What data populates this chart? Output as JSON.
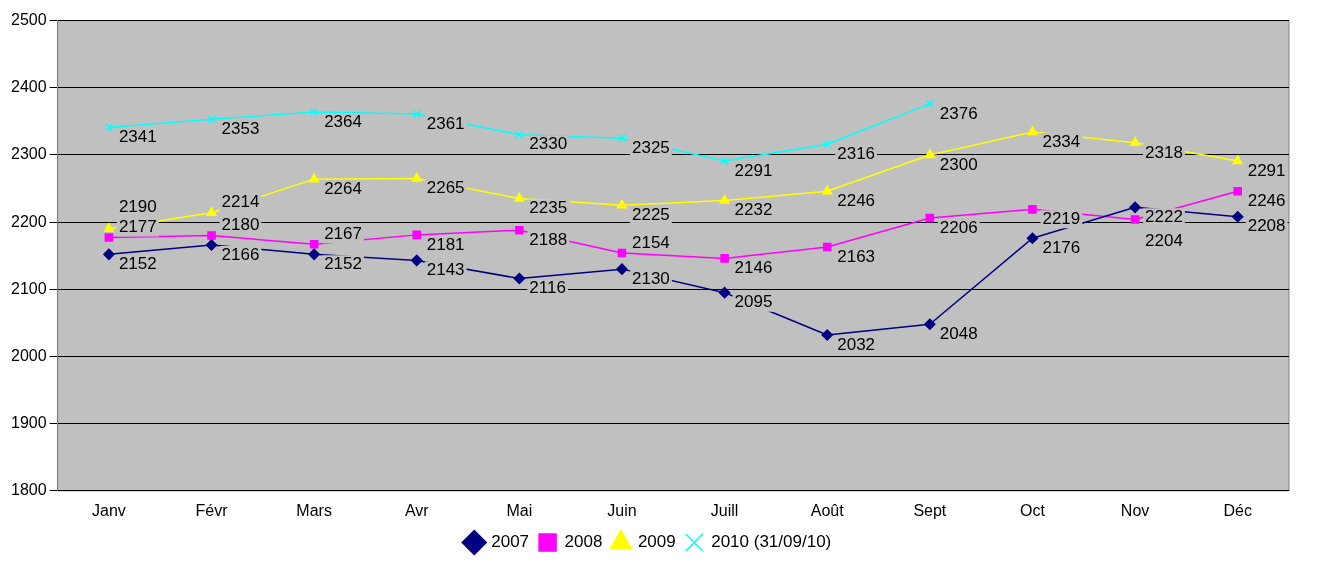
{
  "chart_data": {
    "type": "line",
    "categories": [
      "Janv",
      "Févr",
      "Mars",
      "Avr",
      "Mai",
      "Juin",
      "Juill",
      "Août",
      "Sept",
      "Oct",
      "Nov",
      "Déc"
    ],
    "series": [
      {
        "name": "2007",
        "color": "#000080",
        "marker": "diamond",
        "values": [
          2152,
          2166,
          2152,
          2143,
          2116,
          2130,
          2095,
          2032,
          2048,
          2176,
          2222,
          2208
        ]
      },
      {
        "name": "2008",
        "color": "#ff00ff",
        "marker": "square",
        "values": [
          2177,
          2180,
          2167,
          2181,
          2188,
          2154,
          2146,
          2163,
          2206,
          2219,
          2204,
          2246
        ]
      },
      {
        "name": "2009",
        "color": "#ffff00",
        "marker": "triangle",
        "values": [
          2190,
          2214,
          2264,
          2265,
          2235,
          2225,
          2232,
          2246,
          2300,
          2334,
          2318,
          2291
        ]
      },
      {
        "name": "2010 (31/09/10)",
        "color": "#00ffff",
        "marker": "cross",
        "values": [
          2341,
          2353,
          2364,
          2361,
          2330,
          2325,
          2291,
          2316,
          2376,
          null,
          null,
          null
        ]
      }
    ],
    "ylim": [
      1800,
      2500
    ],
    "yticks": [
      1800,
      1900,
      2000,
      2100,
      2200,
      2300,
      2400,
      2500
    ],
    "grid": "y",
    "legend": "bottom",
    "data_labels": true
  }
}
